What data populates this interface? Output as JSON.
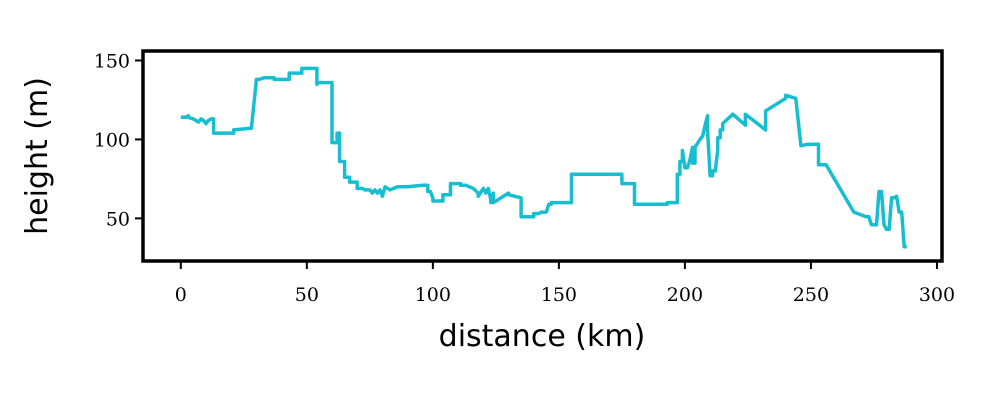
{
  "chart_data": {
    "type": "line",
    "title": "",
    "xlabel": "distance (km)",
    "ylabel": "height (m)",
    "xlim": [
      -15,
      302
    ],
    "ylim": [
      23,
      156
    ],
    "xticks": [
      0,
      50,
      100,
      150,
      200,
      250,
      300
    ],
    "yticks": [
      50,
      100,
      150
    ],
    "grid": false,
    "line_color": "#17becf",
    "series": [
      {
        "x": [
          0,
          2,
          3,
          3,
          5,
          6,
          7,
          8,
          9,
          10,
          11,
          12,
          13,
          13,
          21,
          21,
          27,
          27,
          28,
          30,
          31,
          33,
          37,
          37,
          43,
          43,
          48,
          48,
          54,
          54,
          54,
          54,
          56,
          57,
          58,
          60,
          60,
          61,
          61,
          62,
          62,
          63,
          63,
          65,
          65,
          67,
          67,
          70,
          70,
          72,
          73,
          75,
          76,
          77,
          78,
          79,
          80,
          81,
          83,
          86,
          90,
          96,
          98,
          98,
          99,
          100,
          100,
          104,
          104,
          107,
          107,
          111,
          111,
          113,
          116,
          118,
          118,
          120,
          121,
          122,
          123,
          123,
          124,
          124,
          130,
          130,
          135,
          135,
          140,
          140,
          142,
          143,
          145,
          146,
          147,
          147,
          155,
          155,
          175,
          175,
          180,
          180,
          182,
          182,
          188,
          188,
          193,
          193,
          197,
          197,
          198,
          198,
          199,
          199,
          199,
          200,
          201,
          202,
          202,
          203,
          203,
          204,
          204,
          206,
          207,
          208,
          209,
          209,
          210,
          211,
          211,
          212,
          213,
          213,
          214,
          214,
          215,
          215,
          219,
          219,
          224,
          224,
          232,
          232,
          234,
          240,
          240,
          244,
          244,
          246,
          246,
          249,
          250,
          250,
          253,
          253,
          253,
          256,
          256,
          267,
          267,
          272,
          273,
          274,
          275,
          276,
          277,
          278,
          279,
          280,
          281,
          282,
          283,
          284,
          285,
          286,
          287,
          288
        ],
        "y": [
          114,
          114,
          115,
          114,
          113,
          112,
          111,
          113,
          112,
          110,
          112,
          113,
          113,
          104,
          104,
          106,
          107,
          107,
          107,
          138,
          138,
          139,
          139,
          138,
          138,
          142,
          142,
          145,
          145,
          135,
          135,
          136,
          136,
          136,
          136,
          136,
          98,
          98,
          98,
          98,
          104,
          104,
          86,
          86,
          76,
          76,
          73,
          73,
          69,
          69,
          68,
          68,
          66,
          68,
          66,
          68,
          64,
          70,
          68,
          70,
          70,
          71,
          71,
          67,
          67,
          63,
          61,
          61,
          65,
          65,
          72,
          72,
          71,
          71,
          69,
          66,
          64,
          69,
          66,
          69,
          62,
          60,
          66,
          60,
          66,
          65,
          63,
          51,
          51,
          53,
          53,
          54,
          54,
          59,
          59,
          60,
          60,
          78,
          78,
          72,
          72,
          59,
          59,
          59,
          59,
          59,
          59,
          60,
          60,
          78,
          78,
          86,
          86,
          93,
          93,
          82,
          82,
          87,
          87,
          95,
          85,
          85,
          95,
          100,
          102,
          109,
          115,
          105,
          77,
          77,
          80,
          80,
          93,
          101,
          101,
          106,
          106,
          110,
          116,
          116,
          109,
          116,
          106,
          118,
          120,
          126,
          128,
          126,
          126,
          96,
          96,
          97,
          97,
          97,
          97,
          84,
          84,
          84,
          84,
          54,
          54,
          51,
          51,
          46,
          46,
          46,
          67,
          67,
          46,
          43,
          43,
          63,
          63,
          64,
          54,
          54,
          32,
          32
        ],
        "note_trim": ""
      }
    ]
  }
}
